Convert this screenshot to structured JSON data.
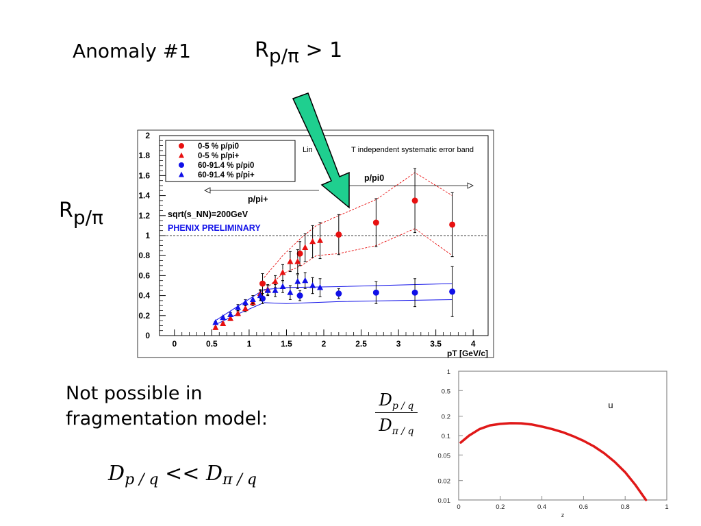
{
  "slide": {
    "title": "Anomaly #1",
    "title_ratio_main": "R",
    "title_ratio_sub": "p/π",
    "title_ratio_tail": " > 1",
    "side_label_main": "R",
    "side_label_sub": "p/π",
    "body_line1": "Not possible in",
    "body_line2": "fragmentation model:",
    "ineq_D1": "D",
    "ineq_sub1": "p / q",
    "ineq_op": " << ",
    "ineq_D2": "D",
    "ineq_sub2": "π / q",
    "frac_num_D": "D",
    "frac_num_sub": "p / q",
    "frac_den_D": "D",
    "frac_den_sub": "π / q",
    "arrow_color": "#1fcf8f"
  },
  "chart_data": [
    {
      "type": "scatter",
      "xlabel": "pT [GeV/c]",
      "xlim": [
        -0.2,
        4.2
      ],
      "ylim": [
        0,
        2
      ],
      "x_ticks": [
        0,
        0.5,
        1,
        1.5,
        2,
        2.5,
        3,
        3.5,
        4
      ],
      "x_tick_labels": [
        "0",
        "0.5",
        "1",
        "1.5",
        "2",
        "2.5",
        "3",
        "3.5",
        "4"
      ],
      "y_ticks": [
        0,
        0.2,
        0.4,
        0.6,
        0.8,
        1,
        1.2,
        1.4,
        1.6,
        1.8,
        2
      ],
      "y_tick_labels": [
        "0",
        "0.2",
        "0.4",
        "0.6",
        "0.8",
        "1",
        "1.2",
        "1.4",
        "1.6",
        "1.8",
        "2"
      ],
      "reference_line": 1,
      "legend": {
        "placement": "top-left",
        "entries": [
          {
            "label": "0-5 % p/pi0",
            "marker": "circle",
            "color": "#e81010"
          },
          {
            "label": "0-5 % p/pi+",
            "marker": "triangle",
            "color": "#e81010"
          },
          {
            "label": "60-91.4 % p/pi0",
            "marker": "circle",
            "color": "#1010e8"
          },
          {
            "label": "60-91.4 % p/pi+",
            "marker": "triangle",
            "color": "#1010e8"
          }
        ]
      },
      "annotations": {
        "sqrt": "sqrt(s_NN)=200GeV",
        "phenix": "PHENIX PRELIMINARY",
        "systematic": "Linear pT independent systematic error band",
        "systematic_visible_left": "Lin",
        "systematic_visible_right": "T independent systematic error band",
        "ppi0": "p/pi0",
        "ppip": "p/pi+"
      },
      "series": [
        {
          "name": "0-5 % p/pi0",
          "marker": "circle",
          "color": "#e81010",
          "points": [
            {
              "x": 1.18,
              "y": 0.52,
              "err": 0.1
            },
            {
              "x": 1.68,
              "y": 0.82,
              "err": 0.12
            },
            {
              "x": 2.2,
              "y": 1.01,
              "err": 0.2
            },
            {
              "x": 2.7,
              "y": 1.13,
              "err": 0.24
            },
            {
              "x": 3.22,
              "y": 1.35,
              "err": 0.32
            },
            {
              "x": 3.72,
              "y": 1.11,
              "err": 0.32
            }
          ]
        },
        {
          "name": "0-5 % p/pi+",
          "marker": "triangle",
          "color": "#e81010",
          "points": [
            {
              "x": 0.55,
              "y": 0.08,
              "err": 0.01
            },
            {
              "x": 0.65,
              "y": 0.12,
              "err": 0.015
            },
            {
              "x": 0.75,
              "y": 0.17,
              "err": 0.02
            },
            {
              "x": 0.85,
              "y": 0.22,
              "err": 0.02
            },
            {
              "x": 0.95,
              "y": 0.27,
              "err": 0.03
            },
            {
              "x": 1.05,
              "y": 0.33,
              "err": 0.03
            },
            {
              "x": 1.15,
              "y": 0.42,
              "err": 0.04
            },
            {
              "x": 1.25,
              "y": 0.46,
              "err": 0.05
            },
            {
              "x": 1.35,
              "y": 0.54,
              "err": 0.06
            },
            {
              "x": 1.45,
              "y": 0.63,
              "err": 0.08
            },
            {
              "x": 1.55,
              "y": 0.74,
              "err": 0.1
            },
            {
              "x": 1.65,
              "y": 0.74,
              "err": 0.12
            },
            {
              "x": 1.75,
              "y": 0.88,
              "err": 0.14
            },
            {
              "x": 1.85,
              "y": 0.94,
              "err": 0.16
            },
            {
              "x": 1.95,
              "y": 0.95,
              "err": 0.18
            }
          ]
        },
        {
          "name": "60-91.4 % p/pi0",
          "marker": "circle",
          "color": "#1010e8",
          "points": [
            {
              "x": 1.18,
              "y": 0.37,
              "err": 0.05
            },
            {
              "x": 1.68,
              "y": 0.4,
              "err": 0.05
            },
            {
              "x": 2.2,
              "y": 0.42,
              "err": 0.05
            },
            {
              "x": 2.7,
              "y": 0.43,
              "err": 0.11
            },
            {
              "x": 3.22,
              "y": 0.43,
              "err": 0.14
            },
            {
              "x": 3.72,
              "y": 0.44,
              "err": 0.25
            }
          ]
        },
        {
          "name": "60-91.4 % p/pi+",
          "marker": "triangle",
          "color": "#1010e8",
          "points": [
            {
              "x": 0.55,
              "y": 0.13,
              "err": 0.01
            },
            {
              "x": 0.65,
              "y": 0.18,
              "err": 0.015
            },
            {
              "x": 0.75,
              "y": 0.21,
              "err": 0.02
            },
            {
              "x": 0.85,
              "y": 0.28,
              "err": 0.03
            },
            {
              "x": 0.95,
              "y": 0.33,
              "err": 0.03
            },
            {
              "x": 1.05,
              "y": 0.36,
              "err": 0.04
            },
            {
              "x": 1.15,
              "y": 0.4,
              "err": 0.05
            },
            {
              "x": 1.25,
              "y": 0.45,
              "err": 0.05
            },
            {
              "x": 1.35,
              "y": 0.45,
              "err": 0.06
            },
            {
              "x": 1.45,
              "y": 0.49,
              "err": 0.06
            },
            {
              "x": 1.55,
              "y": 0.43,
              "err": 0.07
            },
            {
              "x": 1.65,
              "y": 0.54,
              "err": 0.07
            },
            {
              "x": 1.75,
              "y": 0.55,
              "err": 0.08
            },
            {
              "x": 1.85,
              "y": 0.5,
              "err": 0.08
            },
            {
              "x": 1.95,
              "y": 0.48,
              "err": 0.09
            }
          ]
        }
      ],
      "bands": {
        "central_upper": [
          [
            1.2,
            0.58
          ],
          [
            1.45,
            0.8
          ],
          [
            1.7,
            0.98
          ],
          [
            1.9,
            1.1
          ],
          [
            2.2,
            1.2
          ],
          [
            2.7,
            1.36
          ],
          [
            3.22,
            1.63
          ],
          [
            3.72,
            1.4
          ]
        ],
        "central_lower": [
          [
            1.2,
            0.45
          ],
          [
            1.45,
            0.62
          ],
          [
            1.7,
            0.7
          ],
          [
            1.9,
            0.8
          ],
          [
            2.2,
            0.82
          ],
          [
            2.7,
            0.9
          ],
          [
            3.22,
            1.07
          ],
          [
            3.72,
            0.8
          ]
        ],
        "peripheral_upper": [
          [
            0.55,
            0.15
          ],
          [
            0.8,
            0.27
          ],
          [
            1.2,
            0.46
          ],
          [
            1.5,
            0.48
          ],
          [
            2.2,
            0.49
          ],
          [
            3.72,
            0.52
          ]
        ],
        "peripheral_lower": [
          [
            0.55,
            0.11
          ],
          [
            0.8,
            0.2
          ],
          [
            1.2,
            0.33
          ],
          [
            1.5,
            0.32
          ],
          [
            2.2,
            0.34
          ],
          [
            3.72,
            0.36
          ]
        ]
      }
    },
    {
      "type": "line",
      "xlabel": "z",
      "ylog": true,
      "xlim": [
        0,
        1
      ],
      "ylim": [
        0.01,
        1
      ],
      "x_ticks": [
        0,
        0.2,
        0.4,
        0.6,
        0.8,
        1
      ],
      "x_tick_labels": [
        "0",
        "0.2",
        "0.4",
        "0.6",
        "0.8",
        "1"
      ],
      "y_ticks": [
        0.01,
        0.02,
        0.05,
        0.1,
        0.2,
        0.5,
        1
      ],
      "y_tick_labels": [
        "0.01",
        "0.02",
        "0.05",
        "0.1",
        "0.2",
        "0.5",
        "1"
      ],
      "label": "u",
      "series": [
        {
          "color": "#e01818",
          "x": [
            0.01,
            0.05,
            0.1,
            0.15,
            0.2,
            0.25,
            0.3,
            0.35,
            0.4,
            0.45,
            0.5,
            0.55,
            0.6,
            0.65,
            0.7,
            0.75,
            0.8,
            0.85,
            0.9
          ],
          "y": [
            0.078,
            0.1,
            0.126,
            0.144,
            0.152,
            0.156,
            0.155,
            0.149,
            0.138,
            0.126,
            0.113,
            0.098,
            0.083,
            0.068,
            0.053,
            0.039,
            0.027,
            0.017,
            0.01
          ]
        }
      ]
    }
  ]
}
